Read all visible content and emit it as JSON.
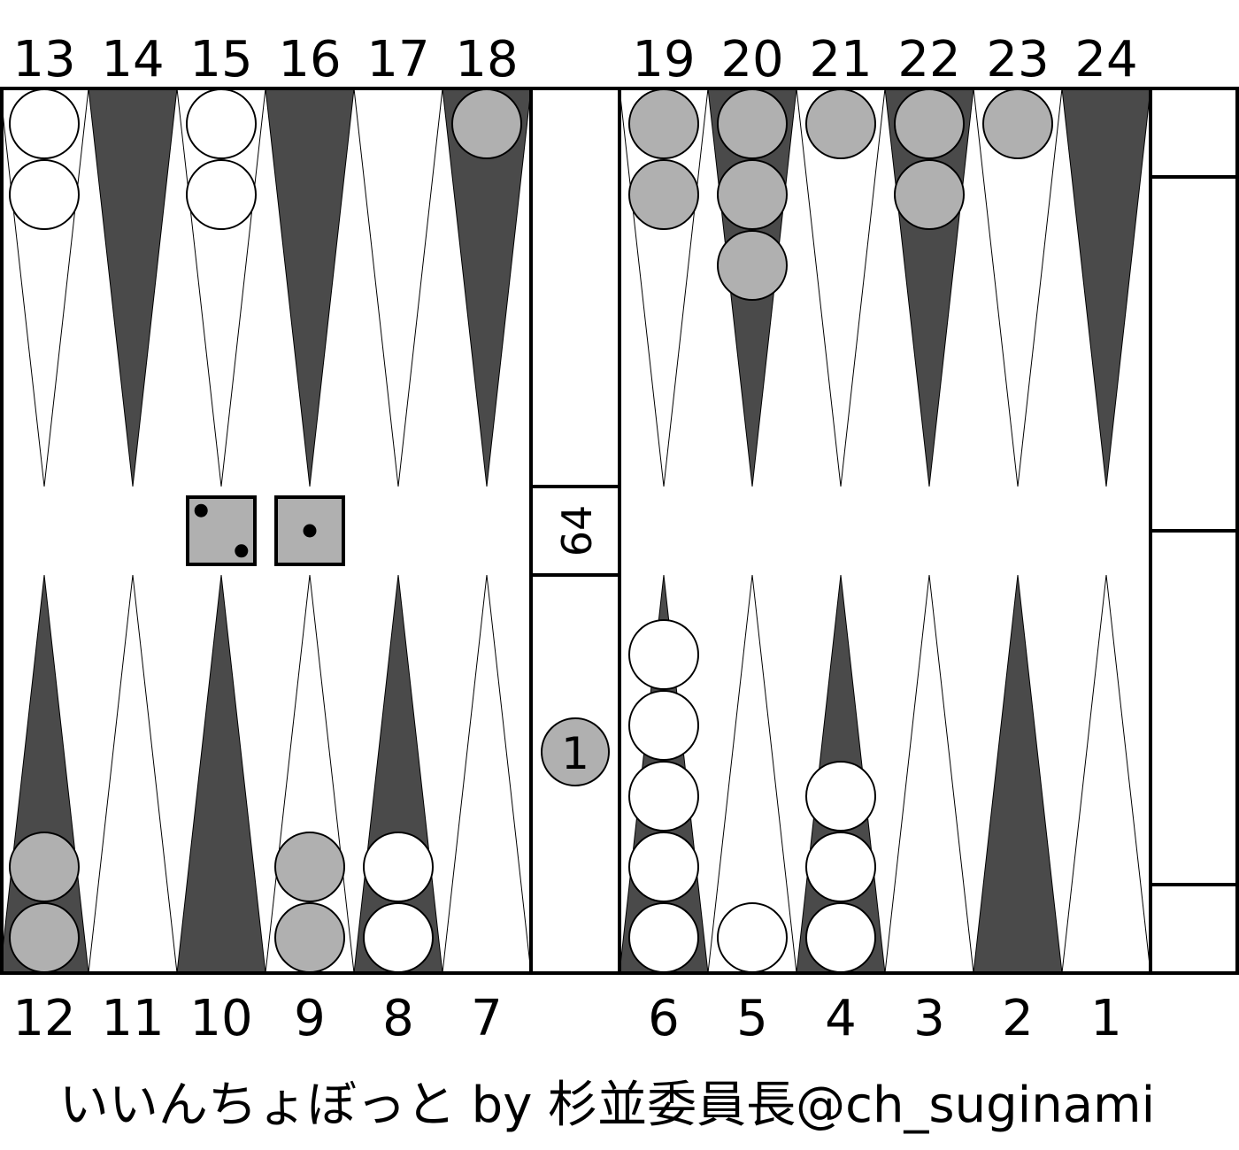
{
  "top_labels": [
    "13",
    "14",
    "15",
    "16",
    "17",
    "18",
    "19",
    "20",
    "21",
    "22",
    "23",
    "24"
  ],
  "bottom_labels": [
    "12",
    "11",
    "10",
    "9",
    "8",
    "7",
    "6",
    "5",
    "4",
    "3",
    "2",
    "1"
  ],
  "colors": {
    "dark_point": "#4a4a4a",
    "light_point": "#ffffff",
    "white_checker": "#ffffff",
    "gray_checker": "#b0b0b0",
    "die_face": "#b0b0b0"
  },
  "points": [
    {
      "point": 13,
      "color": "white",
      "count": 2
    },
    {
      "point": 15,
      "color": "white",
      "count": 2
    },
    {
      "point": 18,
      "color": "gray",
      "count": 1
    },
    {
      "point": 19,
      "color": "gray",
      "count": 2
    },
    {
      "point": 20,
      "color": "gray",
      "count": 3
    },
    {
      "point": 21,
      "color": "gray",
      "count": 1
    },
    {
      "point": 22,
      "color": "gray",
      "count": 2
    },
    {
      "point": 23,
      "color": "gray",
      "count": 1
    },
    {
      "point": 12,
      "color": "gray",
      "count": 2
    },
    {
      "point": 9,
      "color": "gray",
      "count": 2
    },
    {
      "point": 8,
      "color": "white",
      "count": 2
    },
    {
      "point": 6,
      "color": "white",
      "count": 5
    },
    {
      "point": 5,
      "color": "white",
      "count": 1
    },
    {
      "point": 4,
      "color": "white",
      "count": 3
    }
  ],
  "dice": [
    2,
    1
  ],
  "cube_value": "64",
  "bar_checker": {
    "color": "gray",
    "label": "1"
  },
  "credit": "いいんちょぼっと by 杉並委員長@ch_suginami"
}
